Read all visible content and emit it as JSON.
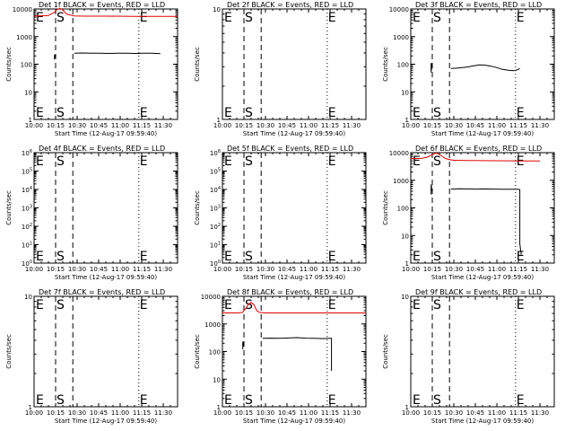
{
  "figure": {
    "xlabel": "Start Time (12-Aug-17 09:59:40)",
    "ylabel": "Counts/sec",
    "x_tick_labels": [
      "10:00",
      "10:15",
      "10:30",
      "10:45",
      "11:00",
      "11:15",
      "11:30"
    ],
    "colors": {
      "events": "#000000",
      "lld": "#e00000"
    }
  },
  "chart_data": [
    {
      "type": "line",
      "title": "Det 1f BLACK = Events, RED = LLD",
      "yscale": "log",
      "ylim": [
        1,
        10000
      ],
      "y_tick_labels": [
        "1",
        "10",
        "100",
        "1000",
        "10000"
      ],
      "x_range_minutes": [
        0,
        100
      ],
      "markers": [
        {
          "label": "E",
          "x_minutes": 0,
          "style": "dotted"
        },
        {
          "label": "S",
          "x_minutes": 15,
          "style": "dashed"
        },
        {
          "label": "",
          "x_minutes": 27,
          "style": "dashed"
        },
        {
          "label": "E",
          "x_minutes": 73,
          "style": "dotted"
        }
      ],
      "series": [
        {
          "name": "Events",
          "color": "#000000",
          "x": [
            14.2,
            14.2,
            14.5,
            14.5
          ],
          "y": [
            150,
            220,
            200,
            170
          ]
        },
        {
          "name": "Events",
          "color": "#000000",
          "x": [
            28,
            34,
            40,
            46,
            52,
            58,
            64,
            70,
            76,
            82,
            88
          ],
          "y": [
            250,
            255,
            250,
            250,
            245,
            250,
            250,
            245,
            250,
            250,
            240
          ]
        },
        {
          "name": "LLD",
          "color": "#e00000",
          "x": [
            0,
            10,
            14,
            16,
            18,
            20,
            22,
            24,
            26,
            28,
            35,
            50,
            70,
            90,
            100
          ],
          "y": [
            5500,
            5800,
            7500,
            9500,
            10500,
            9500,
            7000,
            6200,
            5900,
            5600,
            5500,
            5500,
            5400,
            5400,
            5400
          ]
        }
      ]
    },
    {
      "type": "line",
      "title": "Det 2f BLACK = Events, RED = LLD",
      "yscale": "log",
      "ylim": [
        1,
        10
      ],
      "y_tick_labels": [
        "1",
        "10"
      ],
      "x_range_minutes": [
        0,
        100
      ],
      "markers": [
        {
          "label": "E",
          "x_minutes": 0,
          "style": "dotted"
        },
        {
          "label": "S",
          "x_minutes": 15,
          "style": "dashed"
        },
        {
          "label": "",
          "x_minutes": 27,
          "style": "dashed"
        },
        {
          "label": "E",
          "x_minutes": 73,
          "style": "dotted"
        }
      ],
      "series": []
    },
    {
      "type": "line",
      "title": "Det 3f BLACK = Events, RED = LLD",
      "yscale": "log",
      "ylim": [
        1,
        10000
      ],
      "y_tick_labels": [
        "1",
        "10",
        "100",
        "1000",
        "10000"
      ],
      "x_range_minutes": [
        0,
        100
      ],
      "markers": [
        {
          "label": "E",
          "x_minutes": 0,
          "style": "dotted"
        },
        {
          "label": "S",
          "x_minutes": 15,
          "style": "dashed"
        },
        {
          "label": "",
          "x_minutes": 27,
          "style": "dashed"
        },
        {
          "label": "E",
          "x_minutes": 73,
          "style": "dotted"
        }
      ],
      "series": [
        {
          "name": "Events",
          "color": "#000000",
          "x": [
            14.2,
            14.2,
            14.5,
            14.5
          ],
          "y": [
            50,
            110,
            90,
            60
          ]
        },
        {
          "name": "Events",
          "color": "#000000",
          "x": [
            28,
            32,
            36,
            40,
            44,
            48,
            52,
            56,
            60,
            64,
            68,
            72,
            74,
            76
          ],
          "y": [
            70,
            72,
            75,
            80,
            88,
            95,
            92,
            85,
            75,
            65,
            60,
            58,
            62,
            70
          ]
        }
      ]
    },
    {
      "type": "line",
      "title": "Det 4f BLACK = Events, RED = LLD",
      "yscale": "log",
      "ylim": [
        1,
        1000000
      ],
      "y_tick_labels": [
        "10^0",
        "10^1",
        "10^2",
        "10^3",
        "10^4",
        "10^5",
        "10^6"
      ],
      "x_range_minutes": [
        0,
        100
      ],
      "markers": [
        {
          "label": "E",
          "x_minutes": 0,
          "style": "dotted"
        },
        {
          "label": "S",
          "x_minutes": 15,
          "style": "dashed"
        },
        {
          "label": "",
          "x_minutes": 27,
          "style": "dashed"
        },
        {
          "label": "E",
          "x_minutes": 73,
          "style": "dotted"
        }
      ],
      "series": []
    },
    {
      "type": "line",
      "title": "Det 5f BLACK = Events, RED = LLD",
      "yscale": "log",
      "ylim": [
        1,
        1000000
      ],
      "y_tick_labels": [
        "10^0",
        "10^1",
        "10^2",
        "10^3",
        "10^4",
        "10^5",
        "10^6"
      ],
      "x_range_minutes": [
        0,
        100
      ],
      "markers": [
        {
          "label": "E",
          "x_minutes": 0,
          "style": "dotted"
        },
        {
          "label": "S",
          "x_minutes": 15,
          "style": "dashed"
        },
        {
          "label": "",
          "x_minutes": 27,
          "style": "dashed"
        },
        {
          "label": "E",
          "x_minutes": 73,
          "style": "dotted"
        }
      ],
      "series": []
    },
    {
      "type": "line",
      "title": "Det 6f BLACK = Events, RED = LLD",
      "yscale": "log",
      "ylim": [
        1,
        10000
      ],
      "y_tick_labels": [
        "1",
        "10",
        "100",
        "1000",
        "10000"
      ],
      "x_range_minutes": [
        0,
        100
      ],
      "markers": [
        {
          "label": "E",
          "x_minutes": 0,
          "style": "dotted"
        },
        {
          "label": "S",
          "x_minutes": 15,
          "style": "dashed"
        },
        {
          "label": "",
          "x_minutes": 27,
          "style": "dashed"
        },
        {
          "label": "E",
          "x_minutes": 73,
          "style": "dotted"
        }
      ],
      "series": [
        {
          "name": "Events",
          "color": "#000000",
          "x": [
            14.2,
            14.2,
            14.5,
            14.5
          ],
          "y": [
            300,
            700,
            600,
            400
          ]
        },
        {
          "name": "Events",
          "color": "#000000",
          "x": [
            28,
            34,
            40,
            46,
            52,
            58,
            64,
            70,
            74,
            76,
            76,
            77
          ],
          "y": [
            480,
            490,
            485,
            480,
            485,
            480,
            475,
            470,
            470,
            460,
            5,
            2
          ]
        },
        {
          "name": "LLD",
          "color": "#e00000",
          "x": [
            0,
            8,
            12,
            15,
            18,
            21,
            24,
            27,
            30,
            40,
            60,
            80,
            90
          ],
          "y": [
            6000,
            6300,
            7000,
            8500,
            9800,
            8000,
            6200,
            5600,
            5300,
            5200,
            5100,
            5000,
            5000
          ]
        }
      ]
    },
    {
      "type": "line",
      "title": "Det 7f BLACK = Events, RED = LLD",
      "yscale": "log",
      "ylim": [
        1,
        10
      ],
      "y_tick_labels": [
        "1",
        "10"
      ],
      "x_range_minutes": [
        0,
        100
      ],
      "markers": [
        {
          "label": "E",
          "x_minutes": 0,
          "style": "dotted"
        },
        {
          "label": "S",
          "x_minutes": 15,
          "style": "dashed"
        },
        {
          "label": "",
          "x_minutes": 27,
          "style": "dashed"
        },
        {
          "label": "E",
          "x_minutes": 73,
          "style": "dotted"
        }
      ],
      "series": []
    },
    {
      "type": "line",
      "title": "Det 8f BLACK = Events, RED = LLD",
      "yscale": "log",
      "ylim": [
        1,
        10000
      ],
      "y_tick_labels": [
        "1",
        "10",
        "100",
        "1000",
        "10000"
      ],
      "x_range_minutes": [
        0,
        100
      ],
      "markers": [
        {
          "label": "E",
          "x_minutes": 0,
          "style": "dotted"
        },
        {
          "label": "S",
          "x_minutes": 15,
          "style": "dashed"
        },
        {
          "label": "",
          "x_minutes": 27,
          "style": "dashed"
        },
        {
          "label": "E",
          "x_minutes": 73,
          "style": "dotted"
        }
      ],
      "series": [
        {
          "name": "Events",
          "color": "#000000",
          "x": [
            14.2,
            14.2,
            14.5,
            14.5
          ],
          "y": [
            120,
            230,
            200,
            150
          ]
        },
        {
          "name": "Events",
          "color": "#000000",
          "x": [
            28,
            34,
            40,
            46,
            52,
            58,
            64,
            70,
            74,
            76,
            76
          ],
          "y": [
            300,
            305,
            300,
            310,
            320,
            305,
            300,
            295,
            300,
            300,
            20
          ]
        },
        {
          "name": "LLD",
          "color": "#e00000",
          "x": [
            0,
            10,
            14,
            16,
            18,
            20,
            22,
            24,
            26,
            30,
            40,
            60,
            80,
            100
          ],
          "y": [
            2500,
            2500,
            2600,
            3500,
            5000,
            6000,
            5000,
            3000,
            2600,
            2500,
            2500,
            2500,
            2500,
            2500
          ]
        }
      ]
    },
    {
      "type": "line",
      "title": "Det 9f BLACK = Events, RED = LLD",
      "yscale": "log",
      "ylim": [
        1,
        10
      ],
      "y_tick_labels": [
        "1",
        "10"
      ],
      "x_range_minutes": [
        0,
        100
      ],
      "markers": [
        {
          "label": "E",
          "x_minutes": 0,
          "style": "dotted"
        },
        {
          "label": "S",
          "x_minutes": 15,
          "style": "dashed"
        },
        {
          "label": "",
          "x_minutes": 27,
          "style": "dashed"
        },
        {
          "label": "E",
          "x_minutes": 73,
          "style": "dotted"
        }
      ],
      "series": []
    }
  ]
}
